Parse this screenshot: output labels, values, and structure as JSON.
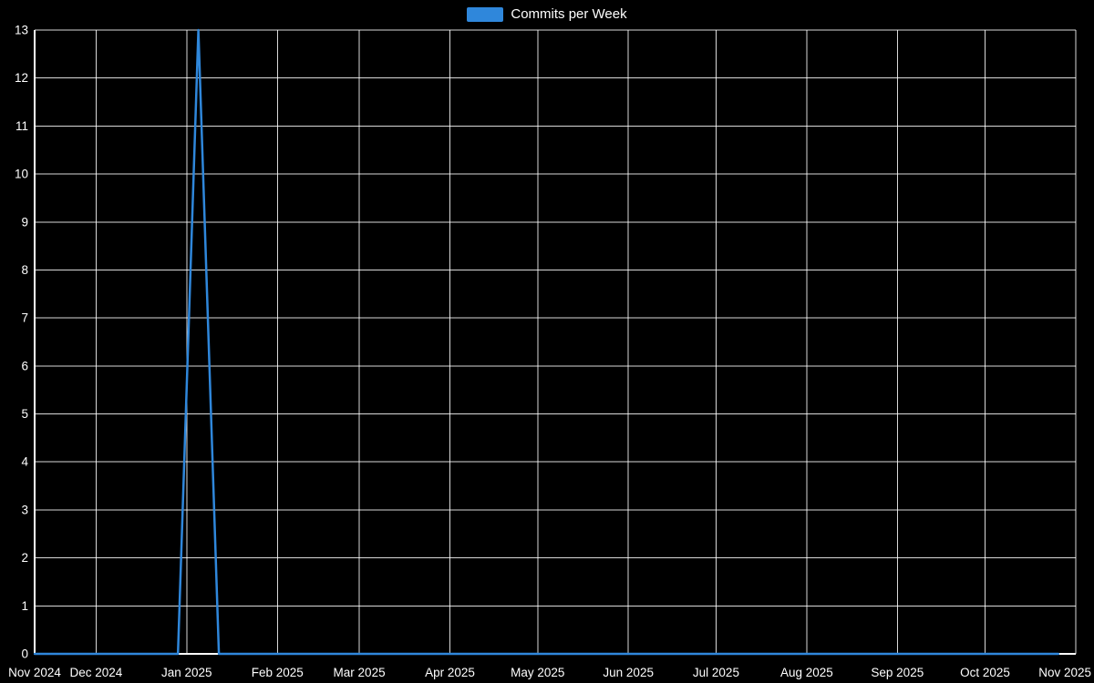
{
  "page": {
    "background_color": "#000000",
    "text_color": "#ffffff"
  },
  "chart_data": {
    "type": "line",
    "title": "",
    "xlabel": "",
    "ylabel": "",
    "grid": true,
    "legend_position": "top-center",
    "background_color": "#000000",
    "grid_color": "#ffffff",
    "axis_color": "#ffffff",
    "text_color": "#ffffff",
    "ylim": [
      0,
      13
    ],
    "y_ticks": [
      0,
      1,
      2,
      3,
      4,
      5,
      6,
      7,
      8,
      9,
      10,
      11,
      12,
      13
    ],
    "x_domain": [
      "2024-11-10",
      "2025-11-01"
    ],
    "x_ticks": [
      {
        "label": "Nov 2024",
        "date": "2024-11-10"
      },
      {
        "label": "Dec 2024",
        "date": "2024-12-01"
      },
      {
        "label": "Jan 2025",
        "date": "2025-01-01"
      },
      {
        "label": "Feb 2025",
        "date": "2025-02-01"
      },
      {
        "label": "Mar 2025",
        "date": "2025-03-01"
      },
      {
        "label": "Apr 2025",
        "date": "2025-04-01"
      },
      {
        "label": "May 2025",
        "date": "2025-05-01"
      },
      {
        "label": "Jun 2025",
        "date": "2025-06-01"
      },
      {
        "label": "Jul 2025",
        "date": "2025-07-01"
      },
      {
        "label": "Aug 2025",
        "date": "2025-08-01"
      },
      {
        "label": "Sep 2025",
        "date": "2025-09-01"
      },
      {
        "label": "Oct 2025",
        "date": "2025-10-01"
      },
      {
        "label": "Nov 2025",
        "date": "2025-11-01"
      }
    ],
    "series": [
      {
        "name": "Commits per Week",
        "color": "#2f87db",
        "start_week": "2024-11-10",
        "interval_days": 7,
        "peak": {
          "week": "2025-01-05",
          "value": 13
        },
        "values": [
          0,
          0,
          0,
          0,
          0,
          0,
          0,
          0,
          13,
          0,
          0,
          0,
          0,
          0,
          0,
          0,
          0,
          0,
          0,
          0,
          0,
          0,
          0,
          0,
          0,
          0,
          0,
          0,
          0,
          0,
          0,
          0,
          0,
          0,
          0,
          0,
          0,
          0,
          0,
          0,
          0,
          0,
          0,
          0,
          0,
          0,
          0,
          0,
          0,
          0,
          0
        ]
      }
    ]
  }
}
